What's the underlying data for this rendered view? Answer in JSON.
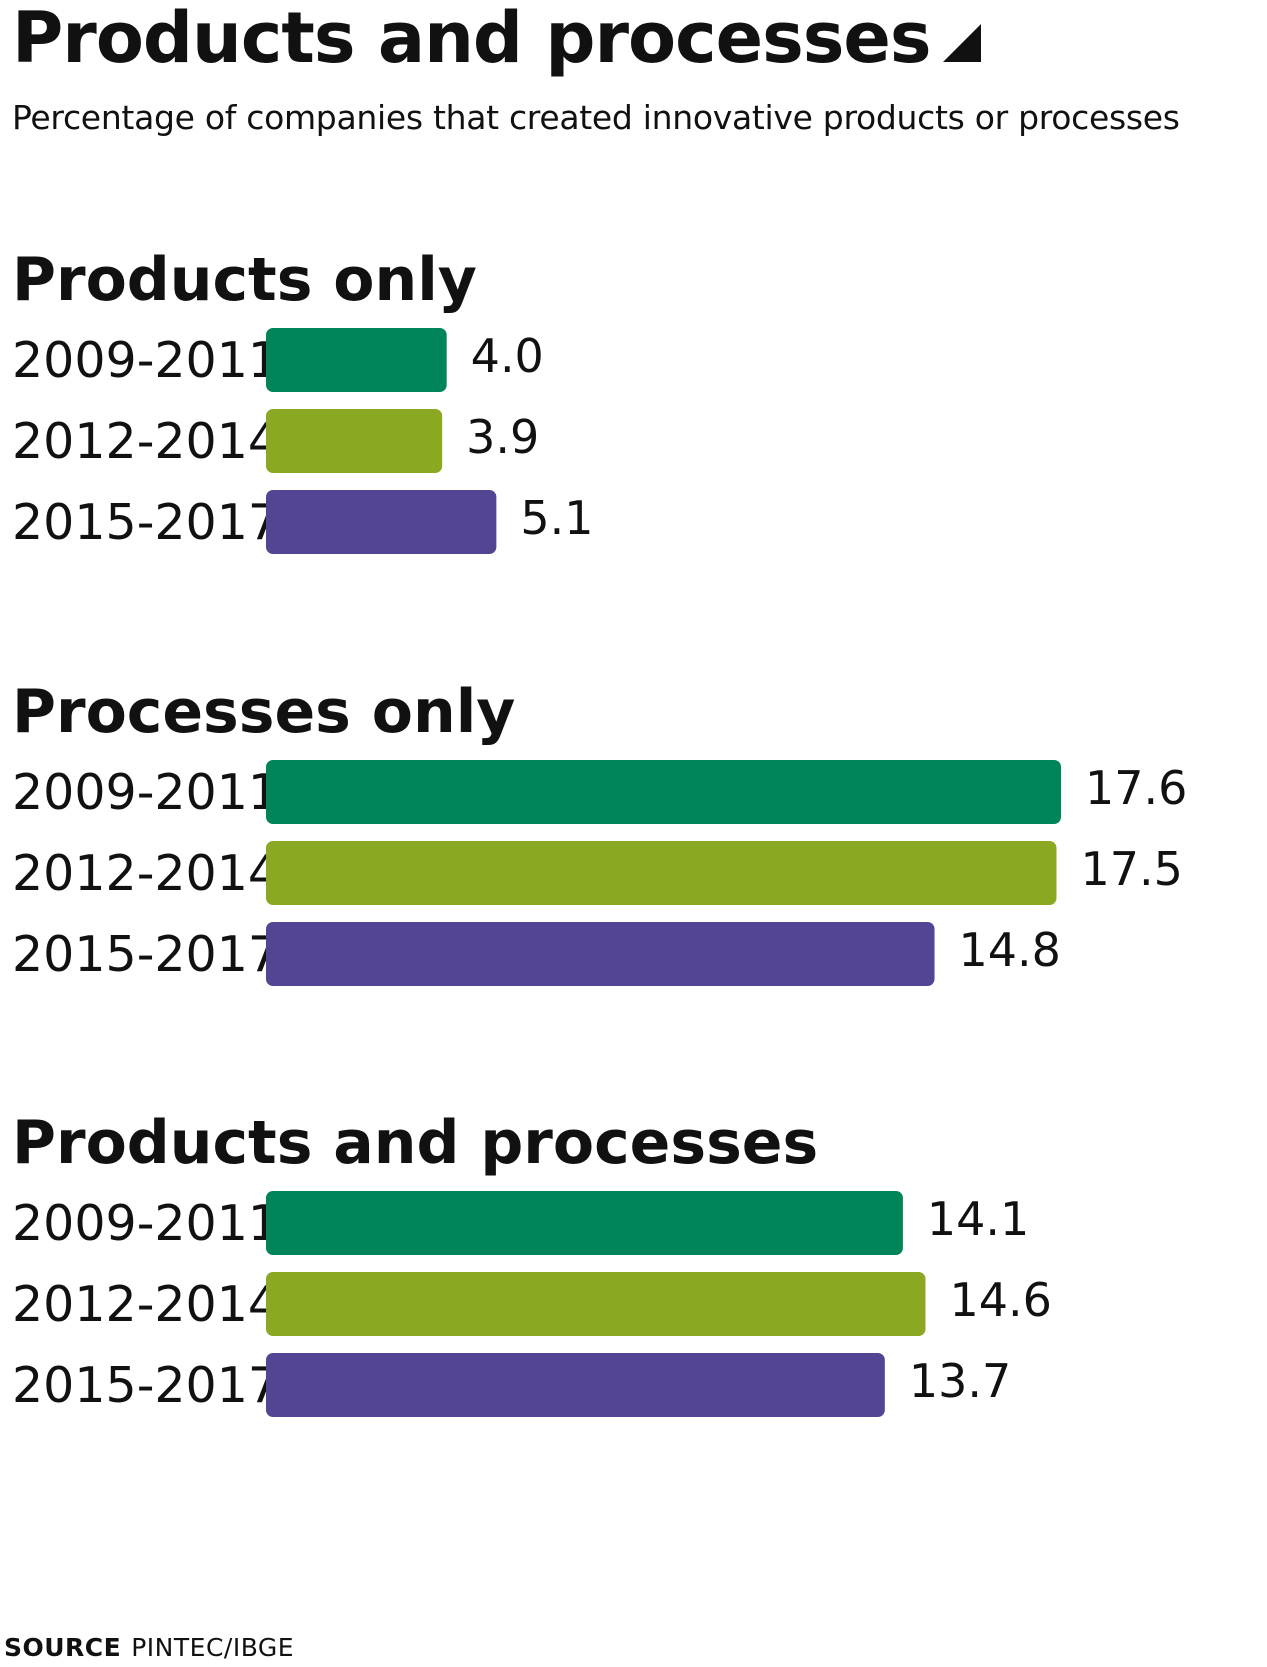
{
  "header": {
    "title": "Products and processes",
    "subtitle": "Percentage of companies that created innovative products or processes"
  },
  "colors": {
    "2009-2011": "#00845a",
    "2012-2014": "#8ba823",
    "2015-2017": "#534594",
    "text": "#111111"
  },
  "chart_data": [
    {
      "type": "bar",
      "orientation": "horizontal",
      "title": "Products only",
      "categories": [
        "2009-2011",
        "2012-2014",
        "2015-2017"
      ],
      "values": [
        4.0,
        3.9,
        5.1
      ],
      "value_labels": [
        "4.0",
        "3.9",
        "5.1"
      ],
      "xlim": [
        0,
        17.6
      ],
      "grid": false,
      "legend": "none"
    },
    {
      "type": "bar",
      "orientation": "horizontal",
      "title": "Processes only",
      "categories": [
        "2009-2011",
        "2012-2014",
        "2015-2017"
      ],
      "values": [
        17.6,
        17.5,
        14.8
      ],
      "value_labels": [
        "17.6",
        "17.5",
        "14.8"
      ],
      "xlim": [
        0,
        17.6
      ],
      "grid": false,
      "legend": "none"
    },
    {
      "type": "bar",
      "orientation": "horizontal",
      "title": "Products and processes",
      "categories": [
        "2009-2011",
        "2012-2014",
        "2015-2017"
      ],
      "values": [
        14.1,
        14.6,
        13.7
      ],
      "value_labels": [
        "14.1",
        "14.6",
        "13.7"
      ],
      "xlim": [
        0,
        17.6
      ],
      "grid": false,
      "legend": "none"
    }
  ],
  "source": {
    "key": "SOURCE",
    "value": "PINTEC/IBGE"
  }
}
